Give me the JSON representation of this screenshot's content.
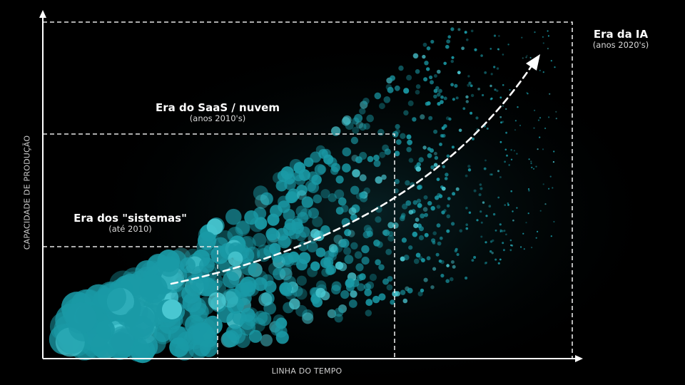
{
  "eras": [
    {
      "title": "Era dos \"sistemas\"",
      "subtitle": "(até 2010)"
    },
    {
      "title": "Era do SaaS / nuvem",
      "subtitle": "(anos 2010's)"
    },
    {
      "title": "Era da IA",
      "subtitle": "(anos 2020's)"
    }
  ],
  "axes": {
    "x_label": "LINHA DO TEMPO",
    "y_label": "CAPACIDADE DE PRODUÇÃO"
  },
  "colors": {
    "background": "#000000",
    "axis": "#ffffff",
    "dashed_lines": "#e6e6e6",
    "bubbles": "#1a9aa6",
    "bubbles_light": "#49c7d1",
    "trend_arrow": "#ffffff"
  }
}
